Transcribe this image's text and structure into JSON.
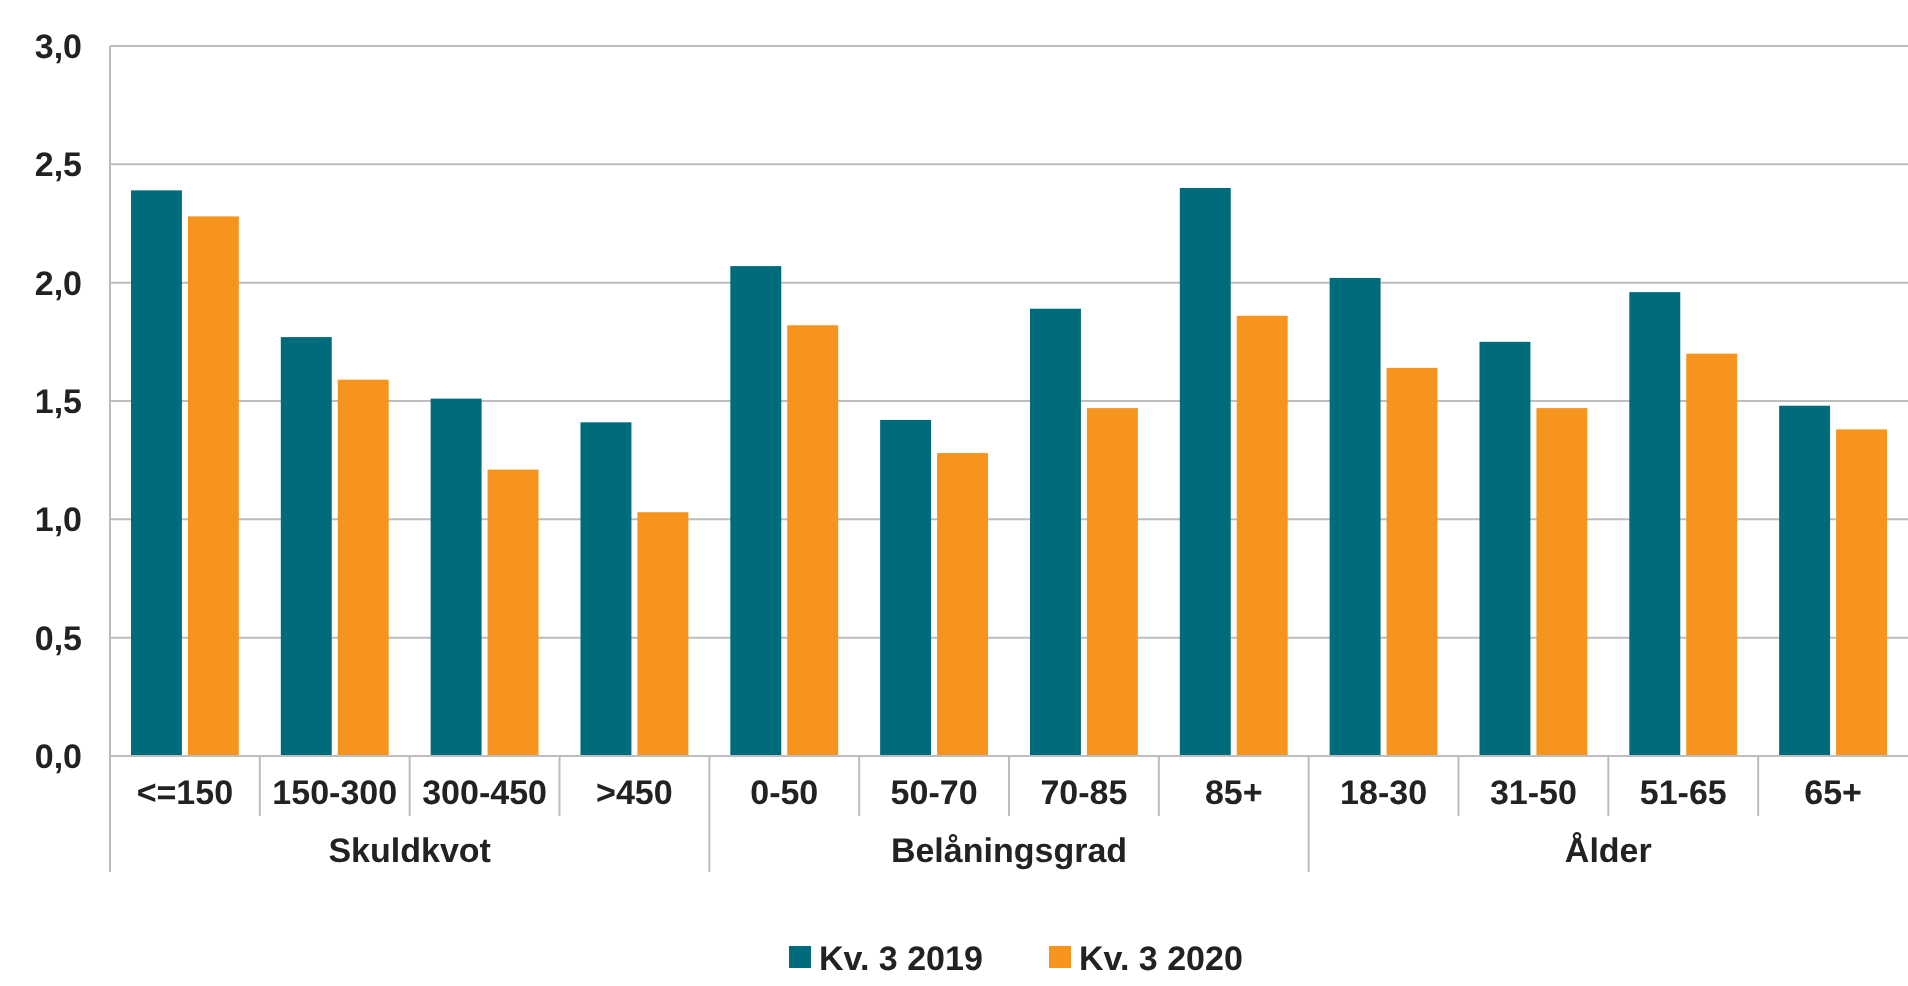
{
  "chart_data": {
    "type": "bar",
    "categories": [
      "<=150",
      "150-300",
      "300-450",
      ">450",
      "0-50",
      "50-70",
      "70-85",
      "85+",
      "18-30",
      "31-50",
      "51-65",
      "65+"
    ],
    "series": [
      {
        "name": "Kv. 3 2019",
        "color": "#006b7a",
        "values": [
          2.39,
          1.77,
          1.51,
          1.41,
          2.07,
          1.42,
          1.89,
          2.4,
          2.02,
          1.75,
          1.96,
          1.48
        ]
      },
      {
        "name": "Kv. 3 2020",
        "color": "#f7941d",
        "values": [
          2.28,
          1.59,
          1.21,
          1.03,
          1.82,
          1.28,
          1.47,
          1.86,
          1.64,
          1.47,
          1.7,
          1.38
        ]
      }
    ],
    "annotations": [
      "Skuldkvot",
      "Belåningsgrad",
      "Ålder"
    ],
    "ylim": [
      0,
      3
    ],
    "yticks": [
      {
        "value": 0,
        "label": "0,0"
      },
      {
        "value": 0.5,
        "label": "0,5"
      },
      {
        "value": 1,
        "label": "1,0"
      },
      {
        "value": 1.5,
        "label": "1,5"
      },
      {
        "value": 2,
        "label": "2,0"
      },
      {
        "value": 2.5,
        "label": "2,5"
      },
      {
        "value": 3,
        "label": "3,0"
      }
    ],
    "grid": "y",
    "legend": "bottom"
  }
}
